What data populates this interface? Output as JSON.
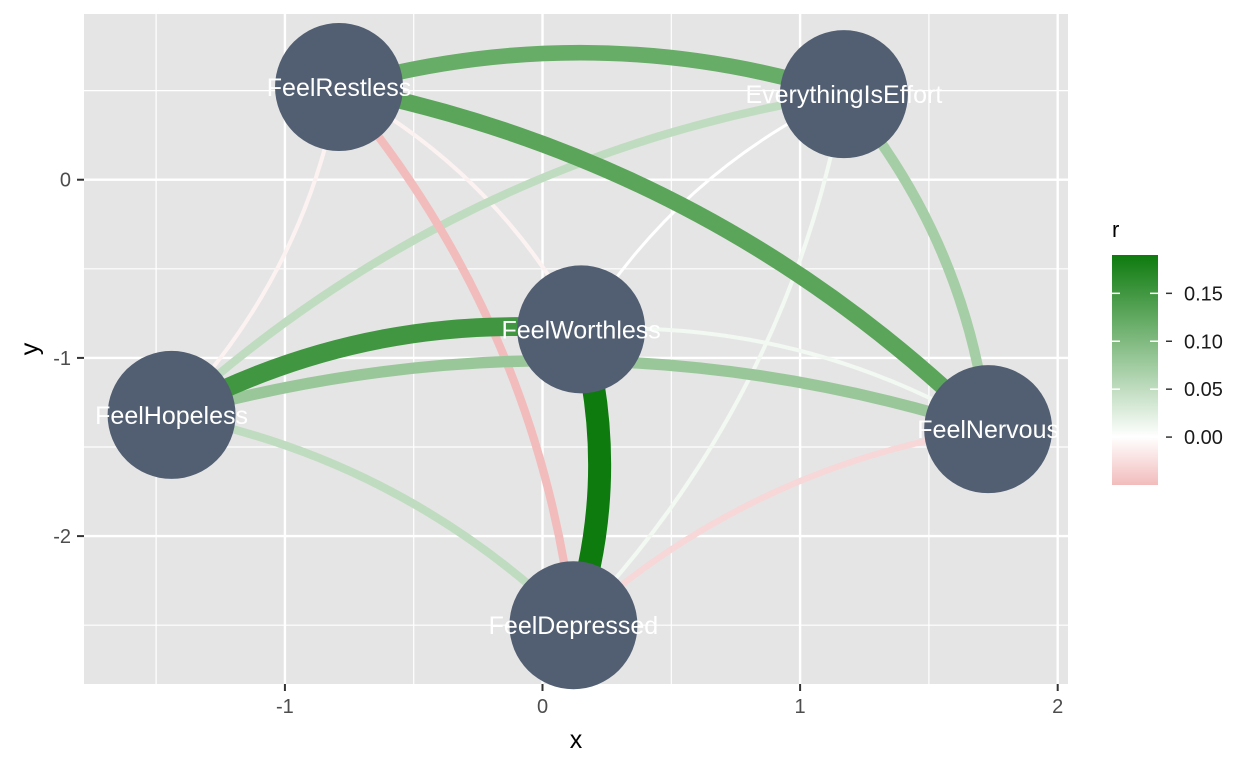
{
  "chart_data": {
    "type": "network",
    "xlabel": "x",
    "ylabel": "y",
    "xlim": [
      -1.78,
      2.04
    ],
    "ylim": [
      -2.83,
      0.93
    ],
    "x_ticks": [
      -1,
      0,
      1,
      2
    ],
    "y_ticks": [
      0,
      -1,
      -2
    ],
    "grid": true,
    "node_color": "#525f72",
    "label_color": "#ffffff",
    "panel_background": "#e5e5e5",
    "nodes": [
      {
        "name": "FeelRestless",
        "x": -0.79,
        "y": 0.52
      },
      {
        "name": "EverythingIsEffort",
        "x": 1.17,
        "y": 0.48
      },
      {
        "name": "FeelWorthless",
        "x": 0.15,
        "y": -0.84
      },
      {
        "name": "FeelHopeless",
        "x": -1.44,
        "y": -1.32
      },
      {
        "name": "FeelNervous",
        "x": 1.73,
        "y": -1.4
      },
      {
        "name": "FeelDepressed",
        "x": 0.12,
        "y": -2.5
      }
    ],
    "edges": [
      {
        "from": "FeelWorthless",
        "to": "FeelDepressed",
        "r": 0.19
      },
      {
        "from": "FeelHopeless",
        "to": "FeelWorthless",
        "r": 0.15
      },
      {
        "from": "FeelRestless",
        "to": "FeelNervous",
        "r": 0.13
      },
      {
        "from": "FeelRestless",
        "to": "EverythingIsEffort",
        "r": 0.12
      },
      {
        "from": "EverythingIsEffort",
        "to": "FeelNervous",
        "r": 0.07
      },
      {
        "from": "FeelHopeless",
        "to": "FeelNervous",
        "r": 0.08
      },
      {
        "from": "FeelHopeless",
        "to": "EverythingIsEffort",
        "r": 0.05
      },
      {
        "from": "FeelHopeless",
        "to": "FeelDepressed",
        "r": 0.05
      },
      {
        "from": "FeelWorthless",
        "to": "FeelNervous",
        "r": 0.01
      },
      {
        "from": "EverythingIsEffort",
        "to": "FeelDepressed",
        "r": 0.01
      },
      {
        "from": "FeelWorthless",
        "to": "EverythingIsEffort",
        "r": 0.0
      },
      {
        "from": "FeelRestless",
        "to": "FeelHopeless",
        "r": -0.01
      },
      {
        "from": "FeelRestless",
        "to": "FeelWorthless",
        "r": -0.01
      },
      {
        "from": "FeelDepressed",
        "to": "FeelNervous",
        "r": -0.03
      },
      {
        "from": "FeelRestless",
        "to": "FeelDepressed",
        "r": -0.05
      }
    ],
    "legend": {
      "title": "r",
      "position": "right",
      "breaks": [
        0.15,
        0.1,
        0.05,
        0.0
      ],
      "labels": [
        "0.15",
        "0.10",
        "0.05",
        "0.00"
      ],
      "limits": [
        -0.05,
        0.19
      ],
      "low_color": "#f2bcbc",
      "mid_color": "#ffffff",
      "high_color": "#0e7b0e"
    }
  }
}
